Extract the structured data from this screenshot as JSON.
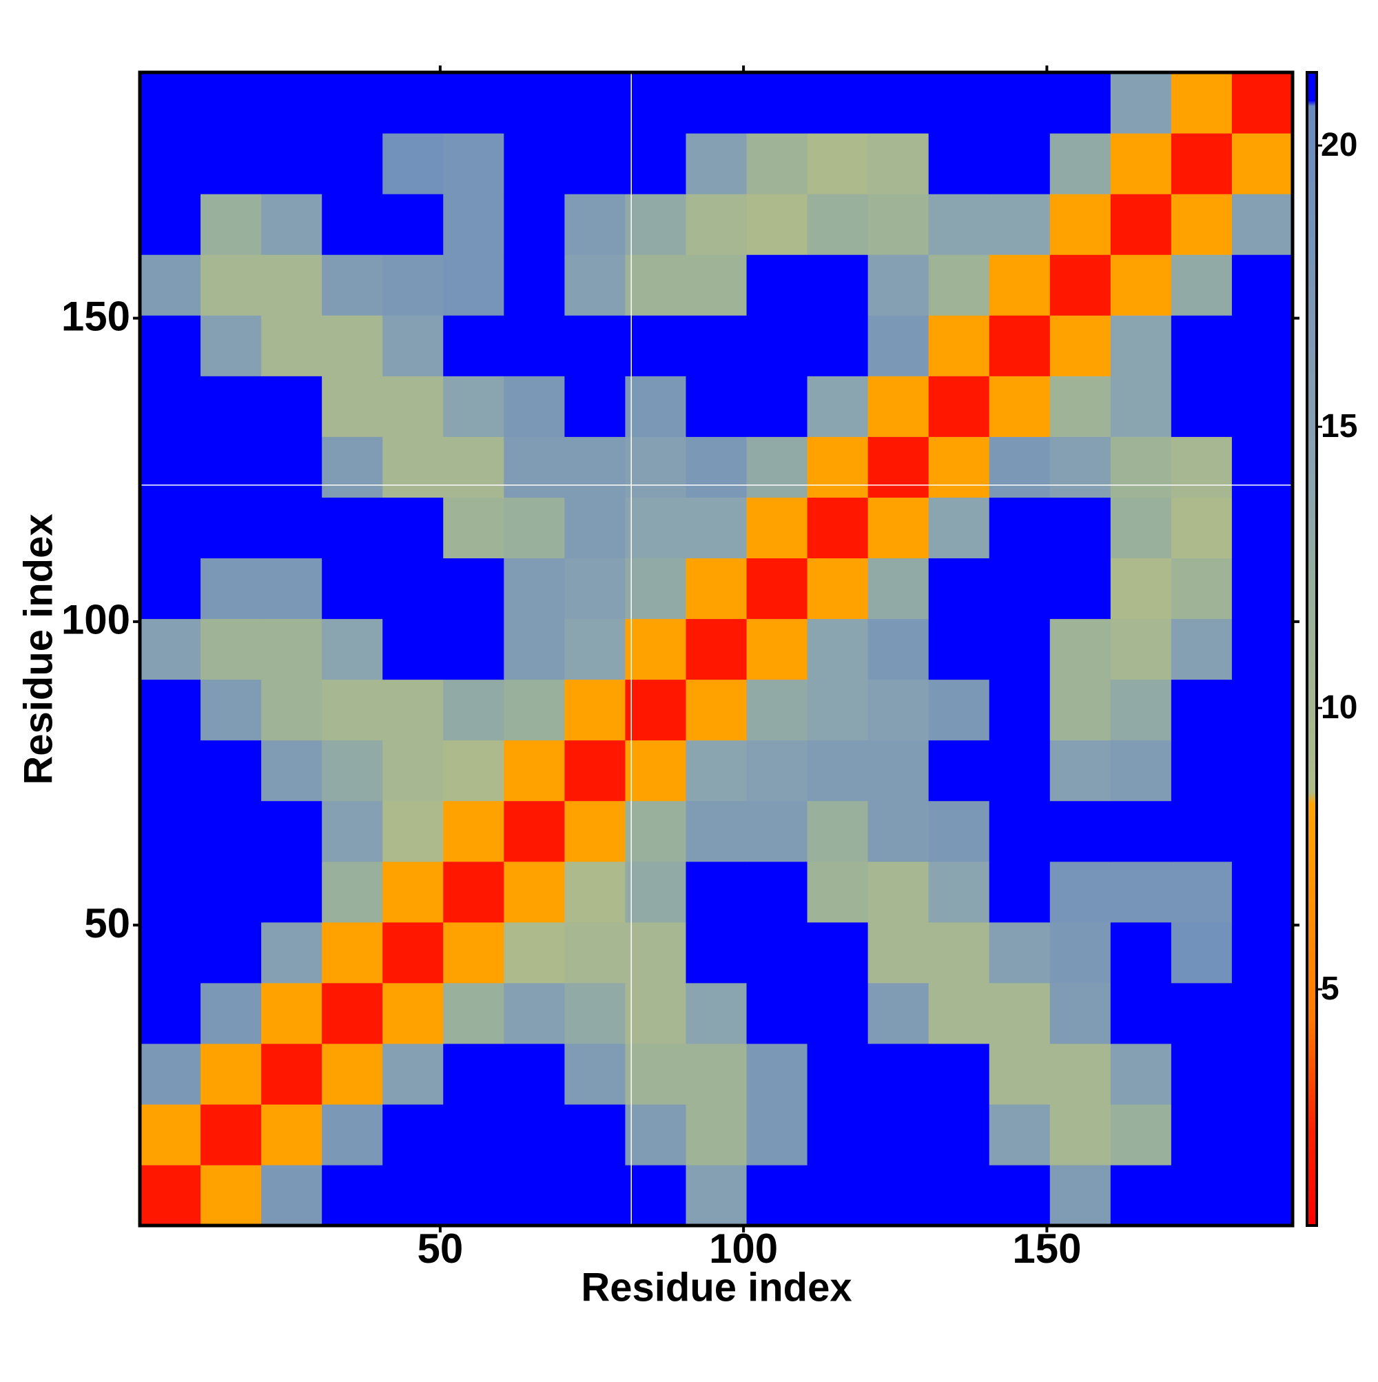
{
  "chart_data": {
    "type": "heatmap",
    "x_label": "Residue index",
    "y_label": "Residue index",
    "x_bins": [
      0.5,
      10.5,
      20.5,
      30.5,
      40.5,
      50.5,
      60.5,
      70.5,
      80.5,
      90.5,
      100.5,
      110.5,
      120.5,
      130.5,
      140.5,
      150.5,
      160.5,
      170.5,
      180.5,
      190.5
    ],
    "y_bins": [
      0.5,
      10.5,
      20.5,
      30.5,
      40.5,
      50.5,
      60.5,
      70.5,
      80.5,
      90.5,
      100.5,
      110.5,
      120.5,
      130.5,
      140.5,
      150.5,
      160.5,
      170.5,
      180.5,
      190.5
    ],
    "xlim": [
      0.5,
      190.5
    ],
    "ylim": [
      0.5,
      190.5
    ],
    "xticks": [
      50,
      100,
      150
    ],
    "yticks": [
      50,
      100,
      150
    ],
    "zlim": [
      0.8,
      21.3
    ],
    "colorbar_ticks": [
      5,
      10,
      15,
      20
    ],
    "colorscale": [
      [
        0.8,
        "#ff0000"
      ],
      [
        2.5,
        "#ff2000"
      ],
      [
        4.5,
        "#ff7a00"
      ],
      [
        8.3,
        "#ffa500"
      ],
      [
        8.5,
        "#b0bc88"
      ],
      [
        12,
        "#98b09c"
      ],
      [
        14,
        "#8aa4b0"
      ],
      [
        20.7,
        "#6a8abf"
      ],
      [
        20.8,
        "#0000ff"
      ],
      [
        21.3,
        "#0000ff"
      ]
    ],
    "guide_lines": {
      "x": 81.5,
      "y": 122.5
    },
    "z": [
      [
        2,
        8,
        17,
        21,
        21,
        21,
        21,
        21,
        21,
        15,
        21,
        21,
        21,
        21,
        21,
        16,
        21,
        21,
        21
      ],
      [
        8,
        2,
        8,
        17,
        21,
        21,
        21,
        21,
        16,
        11,
        17,
        21,
        21,
        21,
        15,
        10,
        12,
        21,
        21
      ],
      [
        17,
        8,
        2,
        8,
        15,
        21,
        21,
        16,
        11,
        11,
        17,
        21,
        21,
        21,
        10,
        10,
        15,
        21,
        21
      ],
      [
        21,
        17,
        8,
        2,
        8,
        12,
        15,
        13,
        10,
        14,
        21,
        21,
        16,
        10,
        10,
        16,
        21,
        21,
        21
      ],
      [
        21,
        21,
        15,
        8,
        2,
        8,
        9,
        10,
        10,
        21,
        21,
        21,
        10,
        10,
        15,
        17,
        21,
        19,
        21
      ],
      [
        21,
        21,
        21,
        12,
        8,
        2,
        8,
        9,
        13,
        21,
        21,
        11,
        10,
        14,
        21,
        18,
        18,
        18,
        21
      ],
      [
        21,
        21,
        21,
        15,
        9,
        8,
        2,
        8,
        12,
        16,
        16,
        12,
        16,
        17,
        21,
        21,
        21,
        21,
        21
      ],
      [
        21,
        21,
        16,
        13,
        10,
        9,
        8,
        2,
        8,
        14,
        15,
        16,
        16,
        21,
        21,
        15,
        16,
        21,
        21
      ],
      [
        21,
        16,
        11,
        10,
        10,
        13,
        12,
        8,
        2,
        8,
        13,
        14,
        15,
        17,
        21,
        11,
        13,
        21,
        21
      ],
      [
        15,
        11,
        11,
        14,
        21,
        21,
        16,
        14,
        8,
        2,
        8,
        14,
        17,
        21,
        21,
        11,
        10,
        15,
        21
      ],
      [
        21,
        17,
        17,
        21,
        21,
        21,
        16,
        15,
        13,
        8,
        2,
        8,
        13,
        21,
        21,
        21,
        9,
        11,
        21
      ],
      [
        21,
        21,
        21,
        21,
        21,
        11,
        12,
        16,
        14,
        14,
        8,
        2,
        8,
        14,
        21,
        21,
        12,
        9,
        21
      ],
      [
        21,
        21,
        21,
        16,
        10,
        10,
        16,
        16,
        15,
        17,
        13,
        8,
        2,
        8,
        17,
        15,
        11,
        10,
        21
      ],
      [
        21,
        21,
        21,
        10,
        10,
        14,
        17,
        21,
        17,
        21,
        21,
        14,
        8,
        2,
        8,
        11,
        14,
        21,
        21
      ],
      [
        21,
        15,
        10,
        10,
        15,
        21,
        21,
        21,
        21,
        21,
        21,
        21,
        17,
        8,
        2,
        8,
        14,
        21,
        21
      ],
      [
        16,
        10,
        10,
        16,
        17,
        18,
        21,
        15,
        11,
        11,
        21,
        21,
        15,
        11,
        8,
        2,
        8,
        13,
        21
      ],
      [
        21,
        12,
        15,
        21,
        21,
        18,
        21,
        16,
        13,
        10,
        9,
        12,
        11,
        14,
        14,
        8,
        2,
        8,
        15
      ],
      [
        21,
        21,
        21,
        21,
        19,
        18,
        21,
        21,
        21,
        15,
        11,
        9,
        10,
        21,
        21,
        13,
        8,
        2,
        8
      ],
      [
        21,
        21,
        21,
        21,
        21,
        21,
        21,
        21,
        21,
        21,
        21,
        21,
        21,
        21,
        21,
        21,
        15,
        8,
        2
      ]
    ]
  }
}
